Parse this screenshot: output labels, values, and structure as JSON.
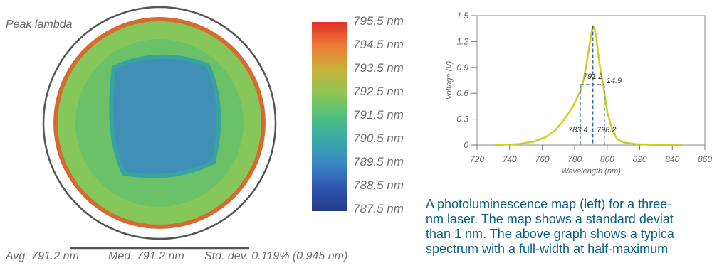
{
  "map": {
    "title": "Peak lambda",
    "colorbar_labels": [
      "795.5 nm",
      "794.5 nm",
      "793.5 nm",
      "792.5 nm",
      "791.5 nm",
      "790.5 nm",
      "789.5 nm",
      "788.5 nm",
      "787.5 nm"
    ],
    "colors": {
      "edge_red": "#d55a2a",
      "outer_green": "#86c75b",
      "inner_green": "#5dbb6c",
      "center_blue": "#3f8fb6",
      "ring": "#555555"
    },
    "stats": {
      "avg": "Avg. 791.2 nm",
      "med": "Med. 791.2 nm",
      "std": "Std. dev. 0.119% (0.945 nm)"
    }
  },
  "chart_data": {
    "type": "line",
    "xlabel": "Wavelength (nm)",
    "ylabel": "Voltage (V)",
    "xlim": [
      720,
      860
    ],
    "ylim": [
      0,
      1.5
    ],
    "x_ticks": [
      720,
      740,
      760,
      780,
      800,
      820,
      840,
      860
    ],
    "y_ticks": [
      0,
      0.3,
      0.6,
      0.9,
      1.2,
      1.5
    ],
    "y_tick_labels": [
      "0",
      "0.3",
      "0.6",
      "0.9",
      "1.2",
      "1.5"
    ],
    "grid": false,
    "line_color": "#d4cc1e",
    "series": [
      {
        "x": [
          731,
          745,
          755,
          762,
          768,
          772,
          776,
          779,
          781,
          783.4,
          785,
          787,
          789,
          790.5,
          791.2,
          792,
          793,
          794.5,
          796,
          798.2,
          800,
          803,
          806,
          810,
          818,
          830,
          846
        ],
        "y": [
          0.0,
          0.01,
          0.04,
          0.09,
          0.17,
          0.26,
          0.36,
          0.45,
          0.53,
          0.62,
          0.72,
          0.9,
          1.15,
          1.32,
          1.38,
          1.36,
          1.28,
          1.05,
          0.85,
          0.62,
          0.38,
          0.18,
          0.07,
          0.03,
          0.01,
          0.0,
          0.0
        ]
      }
    ],
    "annotations": {
      "peak_label": "791.2",
      "fwhm_label": "14.9",
      "left_label": "783.4",
      "right_label": "798.2",
      "peak_x": 791.2,
      "left_x": 783.4,
      "right_x": 798.2,
      "half_max_y": 0.7,
      "peak_y": 1.38
    }
  },
  "caption": {
    "lines": [
      "A photoluminescence map (left) for a three-",
      "nm laser. The map shows a standard deviat",
      "than 1 nm. The above graph shows a typica",
      "spectrum with a full-width at half-maximum"
    ]
  }
}
